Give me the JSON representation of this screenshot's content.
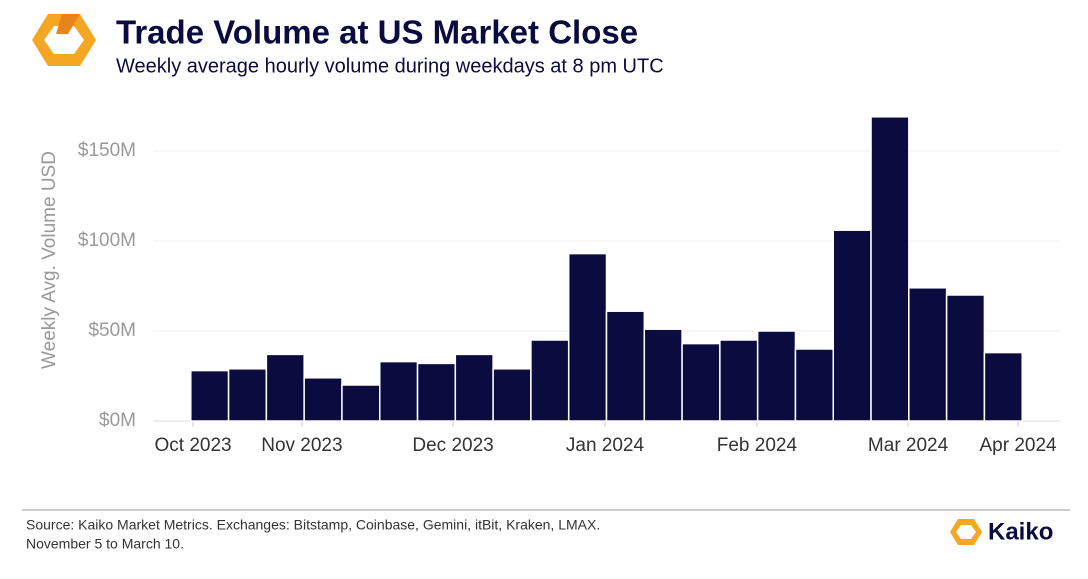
{
  "chart_data": {
    "type": "bar",
    "title": "Trade Volume at US Market Close",
    "subtitle": "Weekly average hourly volume during weekdays at 8 pm UTC",
    "y_label": "Weekly Avg. Volume USD",
    "x": [
      0,
      1,
      2,
      3,
      4,
      5,
      6,
      7,
      8,
      9,
      10,
      11,
      12,
      13,
      14,
      15,
      16,
      17,
      18,
      19,
      20,
      21
    ],
    "values": [
      28,
      29,
      37,
      24,
      20,
      33,
      32,
      37,
      29,
      45,
      93,
      61,
      51,
      43,
      45,
      50,
      40,
      106,
      169,
      74,
      70,
      38
    ],
    "color": "#0b0b3f",
    "xlim": [
      -1.5,
      22.5
    ],
    "xticks": [
      {
        "value": -0.44,
        "label": "Oct 2023"
      },
      {
        "value": 2.44,
        "label": "Nov 2023"
      },
      {
        "value": 6.44,
        "label": "Dec 2023"
      },
      {
        "value": 10.46,
        "label": "Jan 2024"
      },
      {
        "value": 14.48,
        "label": "Feb 2024"
      },
      {
        "value": 18.48,
        "label": "Mar 2024"
      },
      {
        "value": 21.39,
        "label": "Apr 2024"
      }
    ],
    "ylim": [
      0,
      170
    ],
    "yticks": [
      {
        "value": 0,
        "label": "$0M"
      },
      {
        "value": 50,
        "label": "$50M"
      },
      {
        "value": 100,
        "label": "$100M"
      },
      {
        "value": 150,
        "label": "$150M"
      }
    ],
    "grid": true,
    "source": "Source: Kaiko Market Metrics. Exchanges: Bitstamp, Coinbase, Gemini, itBit, Kraken, LMAX.",
    "note": "November 5 to March 10.",
    "brand": "Kaiko"
  }
}
